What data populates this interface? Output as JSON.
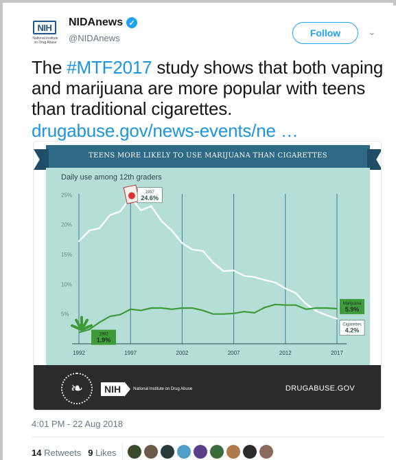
{
  "account": {
    "display_name": "NIDAnews",
    "handle": "@NIDAnews",
    "avatar_text": "NIH",
    "avatar_subtext": "National Institute on Drug Abuse",
    "verified_icon": "verified-badge-icon",
    "follow_label": "Follow"
  },
  "tweet": {
    "text_prefix": "The ",
    "hashtag": "#MTF2017",
    "text_suffix": " study shows that both vaping and marijuana are more popular with teens than traditional cigarettes.",
    "link": "drugabuse.gov/news-events/ne  …",
    "timestamp": "4:01 PM - 22 Aug 2018"
  },
  "engagement": {
    "retweets_count": "14",
    "retweets_label": "Retweets",
    "likes_count": "9",
    "likes_label": "Likes",
    "liker_avatar_colors": [
      "#3a4a2a",
      "#6b5a4a",
      "#2a3a3a",
      "#4fa0c8",
      "#5a3f8a",
      "#3c6b3c",
      "#b07a4a",
      "#2a2a2a",
      "#8a6a5a"
    ]
  },
  "infographic": {
    "banner_title": "TEENS MORE LIKELY TO USE MARIJUANA THAN CIGARETTES",
    "footer_org": "National Institute on Drug Abuse",
    "footer_logo": "NIH",
    "footer_url": "DRUGABUSE.GOV",
    "colors": {
      "banner": "#2e6a86",
      "chart_bg": "#b5ded6",
      "cigarettes": "#ffffff",
      "marijuana": "#3f9a3a",
      "footer": "#2b2b2b"
    }
  },
  "chart_data": {
    "type": "line",
    "title": "Daily use among 12th graders",
    "x": [
      1992,
      1993,
      1994,
      1995,
      1996,
      1997,
      1998,
      1999,
      2000,
      2001,
      2002,
      2003,
      2004,
      2005,
      2006,
      2007,
      2008,
      2009,
      2010,
      2011,
      2012,
      2013,
      2014,
      2015,
      2016,
      2017
    ],
    "x_ticks": [
      "1992",
      "1997",
      "2002",
      "2007",
      "2012",
      "2017"
    ],
    "y_ticks": [
      "5%",
      "10%",
      "15%",
      "20%",
      "25%"
    ],
    "ylim": [
      0,
      27
    ],
    "series": [
      {
        "name": "Cigarettes",
        "values": [
          17.2,
          19.0,
          19.4,
          21.6,
          22.2,
          24.6,
          22.4,
          23.1,
          20.6,
          19.0,
          16.9,
          15.8,
          15.6,
          13.6,
          12.2,
          12.3,
          11.4,
          11.2,
          10.7,
          10.3,
          9.3,
          8.5,
          6.7,
          5.5,
          4.8,
          4.2
        ]
      },
      {
        "name": "Marijuana",
        "values": [
          1.9,
          2.4,
          3.6,
          4.6,
          4.9,
          5.8,
          5.6,
          6.0,
          6.0,
          5.8,
          6.0,
          6.0,
          5.6,
          5.0,
          5.0,
          5.1,
          5.4,
          5.2,
          6.1,
          6.6,
          6.5,
          6.5,
          5.8,
          6.0,
          6.0,
          5.9
        ]
      }
    ],
    "annotations": [
      {
        "year": "1997",
        "value": "24.6%"
      },
      {
        "year": "1992",
        "value": "1.9%"
      },
      {
        "label": "Marijuana",
        "value": "5.9%"
      },
      {
        "label": "Cigarettes",
        "value": "4.2%"
      }
    ]
  }
}
